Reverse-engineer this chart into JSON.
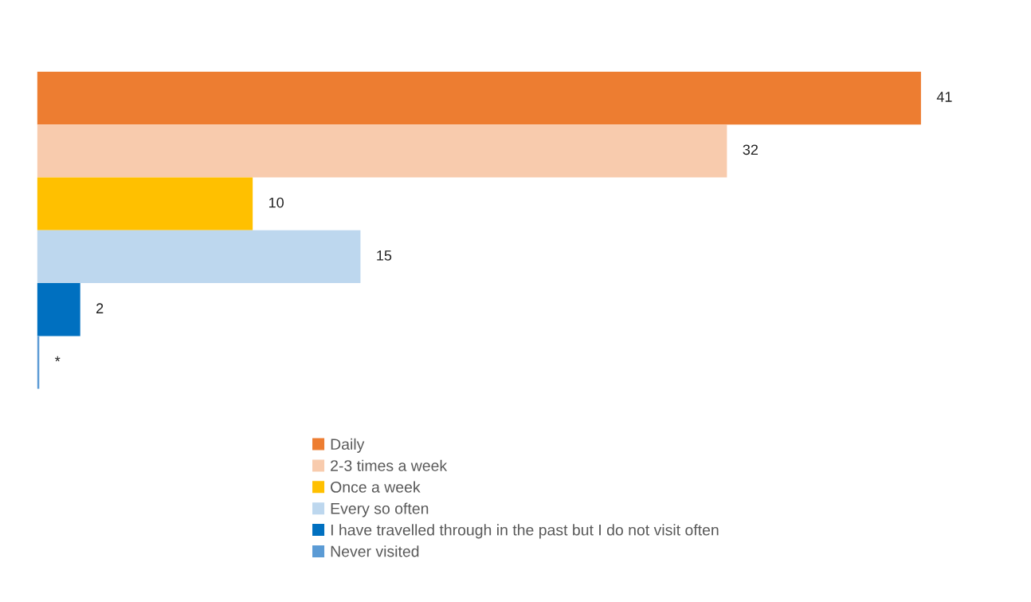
{
  "chart_data": {
    "type": "bar",
    "orientation": "horizontal",
    "categories": [
      null
    ],
    "series": [
      {
        "name": "Daily",
        "color": "#ed7d31",
        "values": [
          41
        ],
        "value_labels": [
          "41"
        ]
      },
      {
        "name": "2-3 times a week",
        "color": "#f8cbad",
        "values": [
          32
        ],
        "value_labels": [
          "32"
        ]
      },
      {
        "name": "Once a week",
        "color": "#ffc000",
        "values": [
          10
        ],
        "value_labels": [
          "10"
        ]
      },
      {
        "name": "Every so often",
        "color": "#bdd7ee",
        "values": [
          15
        ],
        "value_labels": [
          "15"
        ]
      },
      {
        "name": "I have travelled through in the past but I do not visit often",
        "color": "#0070c0",
        "values": [
          2
        ],
        "value_labels": [
          "2"
        ]
      },
      {
        "name": "Never visited",
        "color": "#5b9bd5",
        "values": [
          0.1
        ],
        "value_labels": [
          "*"
        ]
      }
    ],
    "legend": "bottom"
  }
}
